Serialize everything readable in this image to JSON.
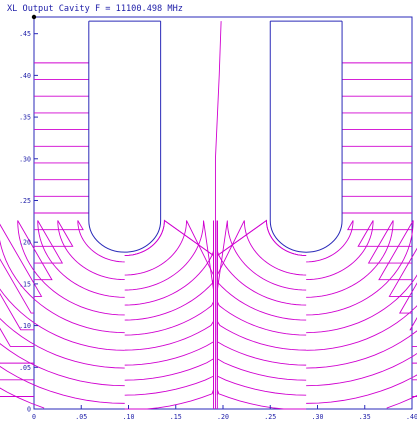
{
  "chart_data": {
    "type": "line",
    "title": "XL Output Cavity  F = 11100.498 MHz",
    "xlim": [
      0,
      0.4
    ],
    "ylim": [
      0,
      0.47
    ],
    "x_ticks": [
      0,
      0.05,
      0.1,
      0.15,
      0.2,
      0.25,
      0.3,
      0.35,
      0.4
    ],
    "x_tick_labels": [
      "0",
      ".05",
      ".10",
      ".15",
      ".20",
      ".25",
      ".30",
      ".35",
      ".40"
    ],
    "y_ticks": [
      0,
      0.05,
      0.1,
      0.15,
      0.2,
      0.25,
      0.3,
      0.35,
      0.4,
      0.45
    ],
    "y_tick_labels": [
      "0",
      ".05",
      ".10",
      ".15",
      ".20",
      ".25",
      ".30",
      ".35",
      ".40",
      ".45"
    ],
    "geometry": {
      "top": 0.465,
      "nose_1": {
        "x_left": 0.058,
        "x_right": 0.134,
        "tip_y": 0.226
      },
      "nose_2": {
        "x_left": 0.25,
        "x_right": 0.326,
        "tip_y": 0.226
      },
      "center_x": 0.192
    },
    "field_line_levels": {
      "outer_left": [
        0.015,
        0.035,
        0.055,
        0.075,
        0.095,
        0.115,
        0.135,
        0.155,
        0.175,
        0.195,
        0.215,
        0.235,
        0.255,
        0.275,
        0.295,
        0.315,
        0.335,
        0.355,
        0.375,
        0.395,
        0.415
      ],
      "outer_right": [
        0.015,
        0.035,
        0.055,
        0.075,
        0.095,
        0.115,
        0.135,
        0.155,
        0.175,
        0.195,
        0.215,
        0.235,
        0.255,
        0.275,
        0.295,
        0.315,
        0.335,
        0.355,
        0.375,
        0.395,
        0.415
      ],
      "center_left": [
        0.02,
        0.04,
        0.06,
        0.08,
        0.1,
        0.12,
        0.14,
        0.16,
        0.18,
        0.2,
        0.24,
        0.3
      ],
      "center_right": [
        0.02,
        0.04,
        0.06,
        0.08,
        0.1,
        0.12,
        0.14,
        0.16,
        0.18,
        0.2,
        0.24,
        0.3
      ]
    },
    "colors": {
      "axes": "#2a2ab8",
      "boundary": "#2a2ab8",
      "field_lines": "#d000d0",
      "text": "#1e1ea8"
    },
    "grid": false,
    "legend": "none"
  }
}
